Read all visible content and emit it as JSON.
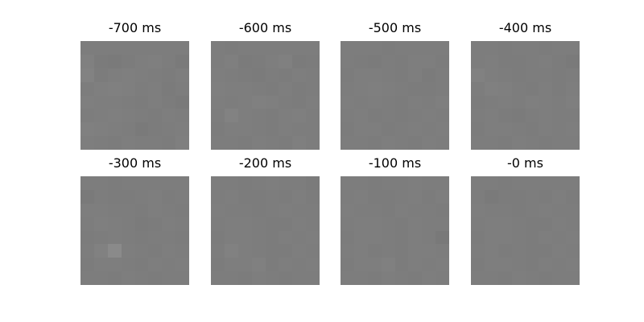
{
  "chart_data": {
    "type": "heatmap",
    "colormap": "gray",
    "vmin": 0,
    "vmax": 255,
    "grid_size": 8,
    "panels": [
      {
        "title": "-700 ms",
        "values": [
          [
            125,
            125,
            125,
            125,
            125,
            125,
            125,
            125
          ],
          [
            128,
            123,
            122,
            124,
            126,
            127,
            125,
            122
          ],
          [
            130,
            124,
            126,
            127,
            126,
            125,
            124,
            126
          ],
          [
            125,
            127,
            128,
            127,
            125,
            126,
            123,
            125
          ],
          [
            127,
            126,
            126,
            125,
            124,
            126,
            124,
            122
          ],
          [
            125,
            126,
            127,
            126,
            125,
            124,
            126,
            125
          ],
          [
            128,
            127,
            126,
            125,
            122,
            124,
            125,
            126
          ],
          [
            126,
            125,
            124,
            126,
            125,
            125,
            124,
            127
          ]
        ]
      },
      {
        "title": "-600 ms",
        "values": [
          [
            125,
            124,
            125,
            125,
            125,
            125,
            125,
            125
          ],
          [
            125,
            127,
            123,
            124,
            126,
            128,
            123,
            124
          ],
          [
            126,
            125,
            124,
            123,
            125,
            124,
            126,
            125
          ],
          [
            127,
            126,
            126,
            125,
            124,
            126,
            124,
            125
          ],
          [
            126,
            125,
            126,
            128,
            127,
            125,
            124,
            126
          ],
          [
            125,
            130,
            126,
            125,
            124,
            126,
            127,
            125
          ],
          [
            124,
            126,
            126,
            125,
            124,
            126,
            125,
            125
          ],
          [
            125,
            125,
            124,
            126,
            125,
            124,
            127,
            125
          ]
        ]
      },
      {
        "title": "-500 ms",
        "values": [
          [
            125,
            125,
            125,
            124,
            125,
            125,
            125,
            125
          ],
          [
            125,
            124,
            123,
            125,
            124,
            126,
            126,
            124
          ],
          [
            124,
            126,
            126,
            125,
            124,
            126,
            123,
            125
          ],
          [
            125,
            126,
            127,
            126,
            125,
            124,
            124,
            125
          ],
          [
            126,
            125,
            126,
            125,
            124,
            126,
            125,
            127
          ],
          [
            125,
            126,
            124,
            125,
            124,
            125,
            126,
            125
          ],
          [
            124,
            126,
            126,
            124,
            125,
            126,
            125,
            126
          ],
          [
            125,
            125,
            124,
            126,
            125,
            124,
            126,
            125
          ]
        ]
      },
      {
        "title": "-400 ms",
        "values": [
          [
            125,
            125,
            124,
            125,
            125,
            124,
            125,
            125
          ],
          [
            125,
            126,
            124,
            124,
            125,
            126,
            124,
            122
          ],
          [
            129,
            126,
            125,
            124,
            125,
            125,
            124,
            125
          ],
          [
            125,
            128,
            127,
            125,
            124,
            126,
            124,
            126
          ],
          [
            124,
            125,
            126,
            125,
            127,
            126,
            125,
            127
          ],
          [
            125,
            126,
            124,
            123,
            125,
            126,
            125,
            125
          ],
          [
            124,
            126,
            126,
            125,
            124,
            126,
            125,
            126
          ],
          [
            125,
            125,
            124,
            126,
            125,
            124,
            125,
            125
          ]
        ]
      },
      {
        "title": "-300 ms",
        "values": [
          [
            125,
            125,
            124,
            125,
            125,
            125,
            125,
            125
          ],
          [
            122,
            125,
            124,
            124,
            125,
            126,
            124,
            125
          ],
          [
            126,
            126,
            125,
            125,
            124,
            126,
            125,
            124
          ],
          [
            125,
            127,
            126,
            125,
            123,
            124,
            126,
            125
          ],
          [
            124,
            125,
            126,
            125,
            124,
            125,
            125,
            124
          ],
          [
            125,
            129,
            138,
            126,
            125,
            124,
            126,
            125
          ],
          [
            124,
            126,
            126,
            125,
            124,
            126,
            125,
            126
          ],
          [
            125,
            125,
            124,
            126,
            125,
            124,
            125,
            125
          ]
        ]
      },
      {
        "title": "-200 ms",
        "values": [
          [
            125,
            125,
            124,
            125,
            126,
            125,
            125,
            123
          ],
          [
            125,
            126,
            124,
            124,
            125,
            124,
            126,
            124
          ],
          [
            126,
            125,
            125,
            124,
            125,
            126,
            125,
            125
          ],
          [
            125,
            126,
            126,
            125,
            124,
            124,
            126,
            125
          ],
          [
            124,
            126,
            126,
            125,
            124,
            126,
            125,
            126
          ],
          [
            125,
            129,
            126,
            125,
            124,
            124,
            126,
            125
          ],
          [
            124,
            126,
            126,
            128,
            124,
            126,
            125,
            126
          ],
          [
            125,
            125,
            124,
            126,
            125,
            124,
            125,
            125
          ]
        ]
      },
      {
        "title": "-100 ms",
        "values": [
          [
            125,
            125,
            124,
            125,
            125,
            126,
            125,
            125
          ],
          [
            125,
            126,
            124,
            124,
            125,
            126,
            124,
            126
          ],
          [
            126,
            125,
            125,
            124,
            126,
            125,
            125,
            124
          ],
          [
            125,
            126,
            126,
            125,
            124,
            126,
            125,
            125
          ],
          [
            124,
            126,
            126,
            125,
            124,
            126,
            125,
            121
          ],
          [
            125,
            126,
            124,
            125,
            124,
            126,
            126,
            125
          ],
          [
            124,
            126,
            126,
            128,
            124,
            126,
            125,
            126
          ],
          [
            125,
            125,
            124,
            126,
            125,
            124,
            126,
            125
          ]
        ]
      },
      {
        "title": "-0 ms",
        "values": [
          [
            125,
            125,
            124,
            125,
            125,
            125,
            125,
            125
          ],
          [
            125,
            122,
            124,
            124,
            125,
            124,
            126,
            124
          ],
          [
            126,
            125,
            125,
            124,
            125,
            126,
            125,
            125
          ],
          [
            125,
            126,
            126,
            125,
            124,
            124,
            126,
            125
          ],
          [
            124,
            126,
            126,
            125,
            124,
            126,
            125,
            126
          ],
          [
            125,
            126,
            124,
            125,
            124,
            124,
            126,
            125
          ],
          [
            124,
            126,
            126,
            125,
            124,
            126,
            125,
            126
          ],
          [
            125,
            125,
            124,
            126,
            125,
            124,
            125,
            125
          ]
        ]
      }
    ]
  }
}
